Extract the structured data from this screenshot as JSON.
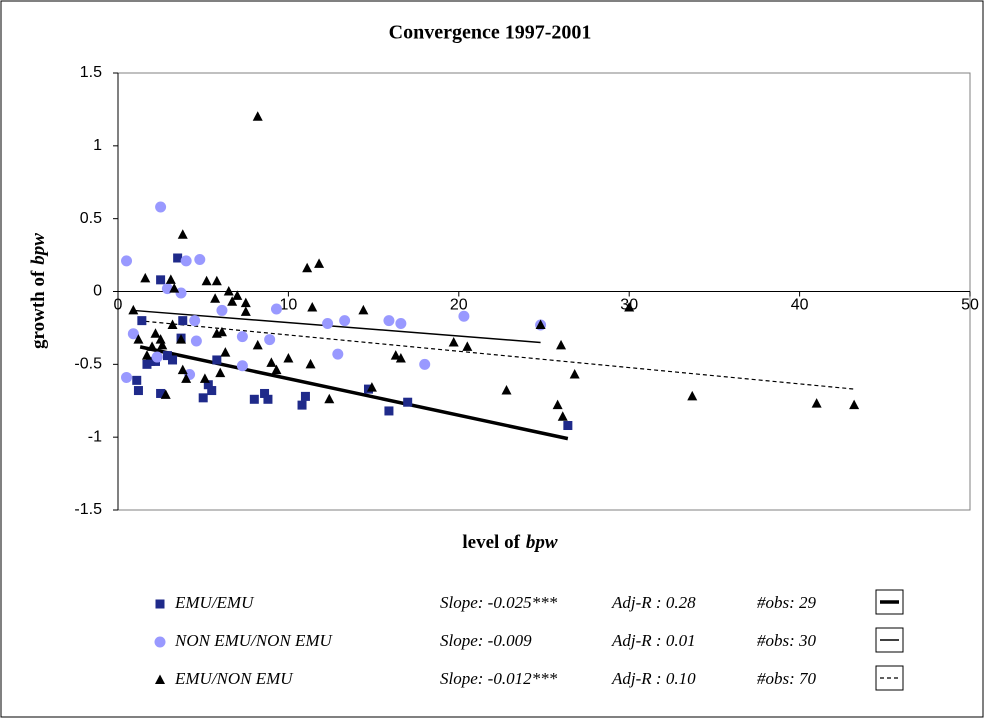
{
  "chart_data": {
    "type": "scatter",
    "title": "Convergence 1997-2001",
    "x_label": {
      "text": "level of",
      "var": "bpw"
    },
    "y_label": {
      "text": "growth of",
      "var": "bpw"
    },
    "xlim": [
      0,
      50
    ],
    "xticks": [
      0,
      10,
      20,
      30,
      40,
      50
    ],
    "ylim": [
      -1.5,
      1.5
    ],
    "yticks": [
      1.5,
      1,
      0.5,
      0,
      -0.5,
      -1,
      -1.5
    ],
    "series": [
      {
        "name": "EMU/EMU",
        "marker": "square",
        "color": "#1f2a8a",
        "slope": "Slope: -0.025***",
        "adj_r": "Adj-R : 0.28",
        "obs": "#obs: 29",
        "trend": {
          "style": "thick",
          "x": [
            1.3,
            26.4
          ],
          "y": [
            -0.38,
            -1.01
          ]
        },
        "x": [
          1.1,
          1.2,
          1.4,
          1.7,
          1.9,
          2.2,
          2.5,
          2.5,
          2.9,
          3.2,
          3.5,
          3.7,
          3.8,
          5.0,
          5.3,
          5.5,
          5.8,
          8.0,
          8.6,
          8.8,
          10.8,
          11.0,
          14.7,
          15.9,
          17.0,
          26.4
        ],
        "values": [
          -0.61,
          -0.68,
          -0.2,
          -0.5,
          -0.48,
          -0.48,
          0.08,
          -0.7,
          -0.44,
          -0.47,
          0.23,
          -0.32,
          -0.2,
          -0.73,
          -0.64,
          -0.68,
          -0.47,
          -0.74,
          -0.7,
          -0.74,
          -0.78,
          -0.72,
          -0.67,
          -0.82,
          -0.76,
          -0.92
        ]
      },
      {
        "name": "NON EMU/NON EMU",
        "marker": "circle",
        "color": "#9999ff",
        "slope": "Slope: -0.009",
        "adj_r": "Adj-R : 0.01",
        "obs": "#obs: 30",
        "trend": {
          "style": "thin",
          "x": [
            0.9,
            24.8
          ],
          "y": [
            -0.13,
            -0.35
          ]
        },
        "x": [
          0.5,
          0.9,
          0.5,
          2.5,
          2.3,
          2.9,
          3.7,
          4.0,
          4.8,
          4.5,
          4.6,
          4.2,
          6.1,
          7.3,
          7.3,
          8.9,
          9.3,
          12.3,
          12.9,
          13.3,
          15.9,
          16.6,
          18.0,
          20.3,
          24.8
        ],
        "values": [
          0.21,
          -0.29,
          -0.59,
          0.58,
          -0.45,
          0.02,
          -0.01,
          0.21,
          0.22,
          -0.2,
          -0.34,
          -0.57,
          -0.13,
          -0.31,
          -0.51,
          -0.33,
          -0.12,
          -0.22,
          -0.43,
          -0.2,
          -0.2,
          -0.22,
          -0.5,
          -0.17,
          -0.23
        ]
      },
      {
        "name": "EMU/NON EMU",
        "marker": "triangle",
        "color": "#000000",
        "slope": "Slope: -0.012***",
        "adj_r": "Adj-R : 0.10",
        "obs": "#obs: 70",
        "trend": {
          "style": "dotted",
          "x": [
            1.2,
            43.2
          ],
          "y": [
            -0.2,
            -0.67
          ]
        },
        "x": [
          0.9,
          1.2,
          1.6,
          1.7,
          2.0,
          2.2,
          2.5,
          2.6,
          2.8,
          3.1,
          3.2,
          3.3,
          3.7,
          3.8,
          3.8,
          4.0,
          5.2,
          5.1,
          5.7,
          5.8,
          5.8,
          6.0,
          6.1,
          6.3,
          6.5,
          6.7,
          7.0,
          7.5,
          7.5,
          8.2,
          9.0,
          9.3,
          8.2,
          10.0,
          11.1,
          11.3,
          11.4,
          11.8,
          12.4,
          14.4,
          14.9,
          16.3,
          16.6,
          19.7,
          20.5,
          22.8,
          24.8,
          26.0,
          25.8,
          26.1,
          26.8,
          30.0,
          33.7,
          41.0,
          43.2
        ],
        "values": [
          -0.13,
          -0.33,
          0.09,
          -0.44,
          -0.38,
          -0.29,
          -0.33,
          -0.37,
          -0.71,
          0.08,
          -0.23,
          0.02,
          -0.33,
          0.39,
          -0.54,
          -0.6,
          0.07,
          -0.6,
          -0.05,
          0.07,
          -0.29,
          -0.56,
          -0.28,
          -0.42,
          0.0,
          -0.07,
          -0.03,
          -0.08,
          -0.14,
          1.2,
          -0.49,
          -0.54,
          -0.37,
          -0.46,
          0.16,
          -0.5,
          -0.11,
          0.19,
          -0.74,
          -0.13,
          -0.66,
          -0.44,
          -0.46,
          -0.35,
          -0.38,
          -0.68,
          -0.23,
          -0.37,
          -0.78,
          -0.86,
          -0.57,
          -0.11,
          -0.72,
          -0.77,
          -0.78
        ]
      }
    ]
  }
}
